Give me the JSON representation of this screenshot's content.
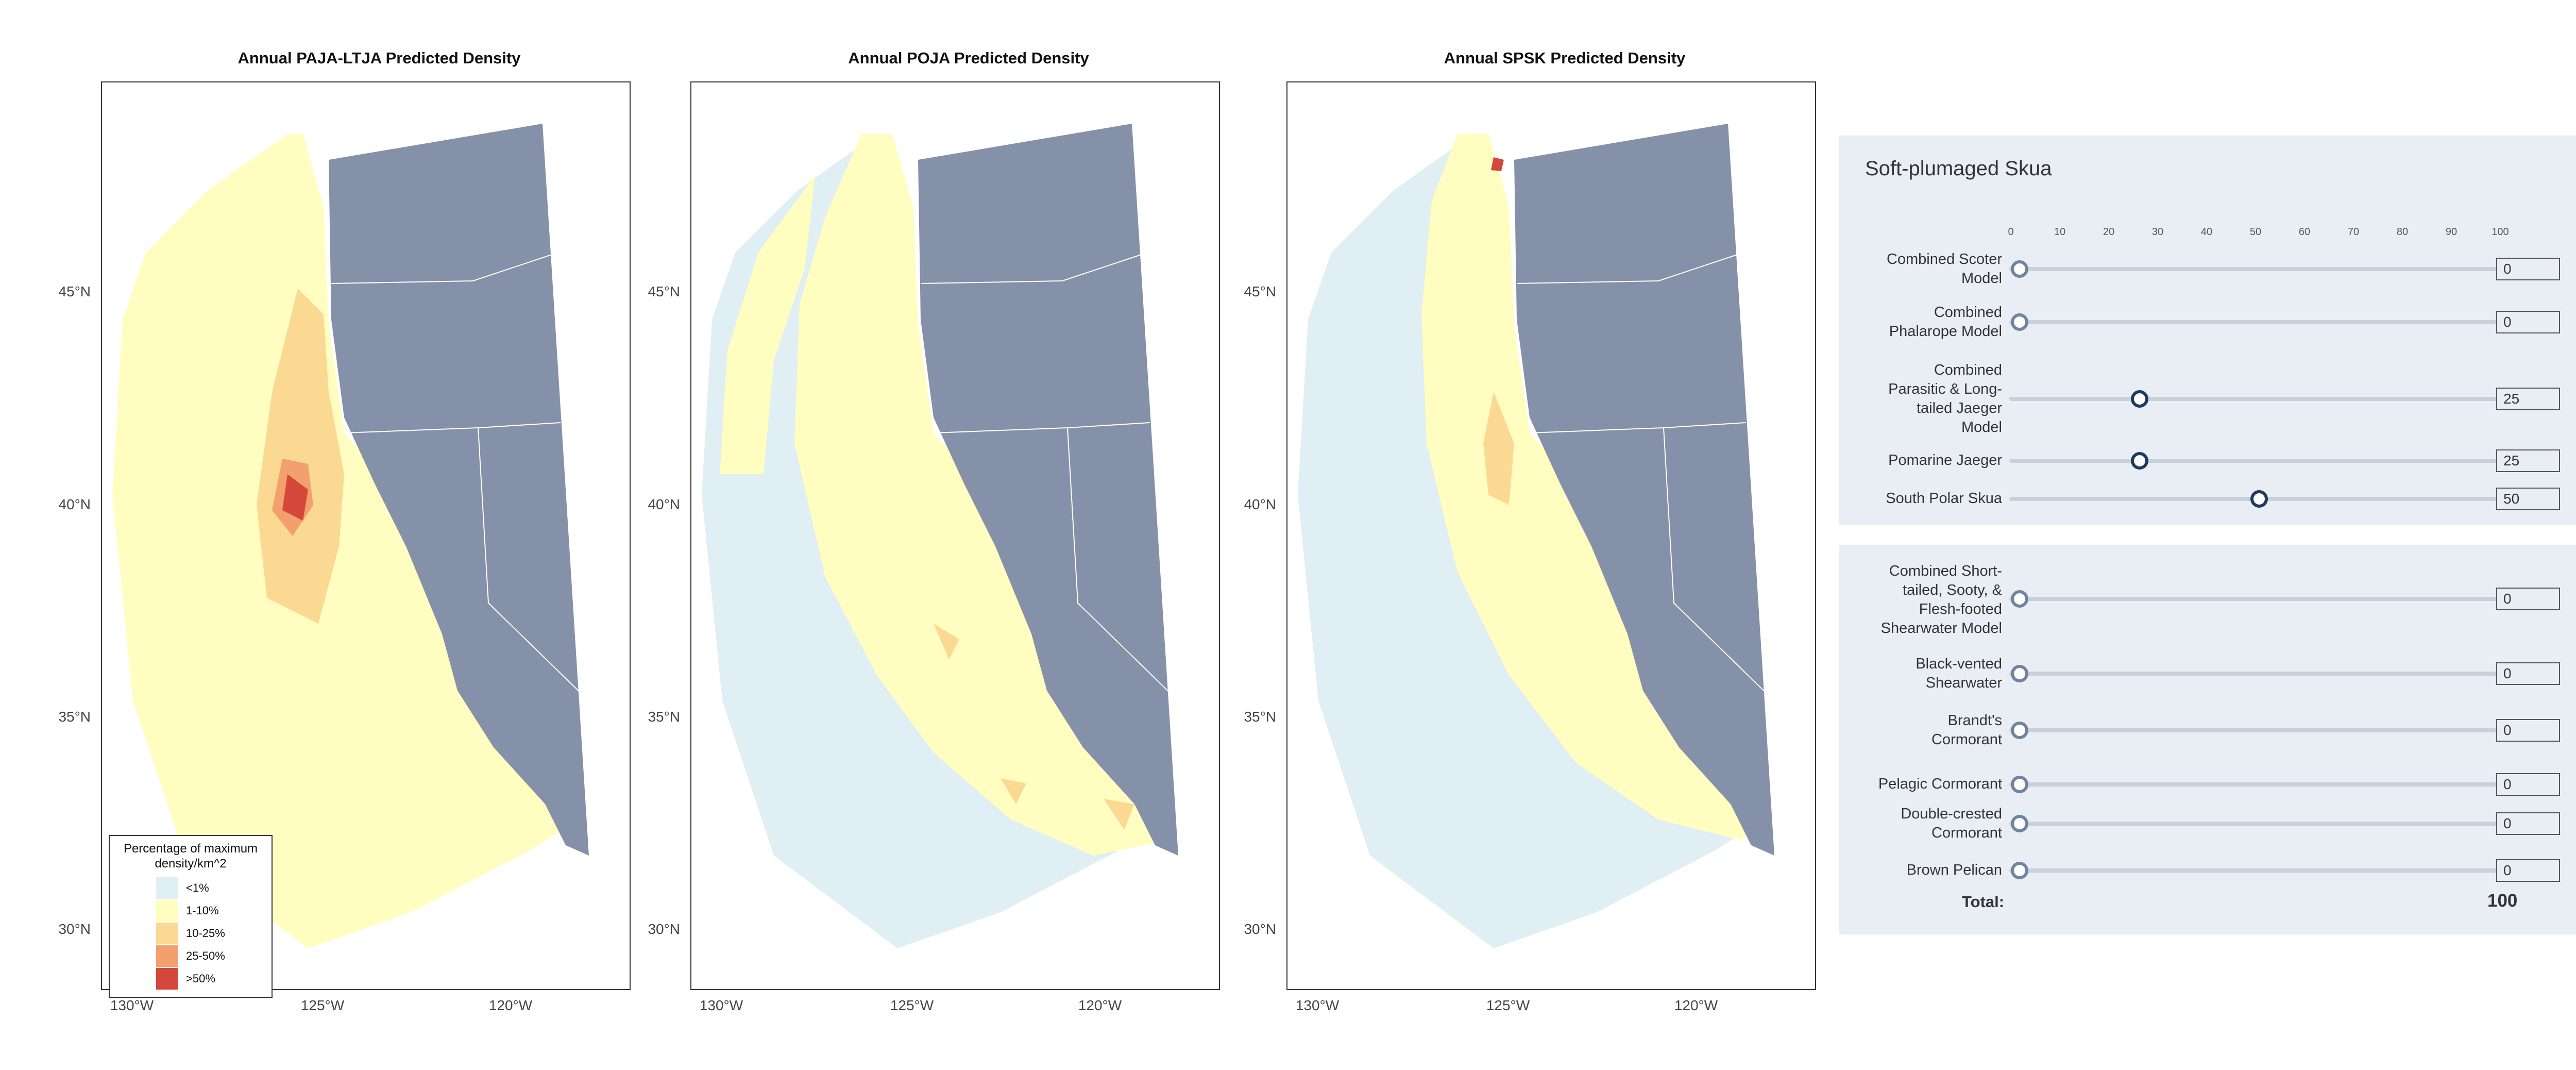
{
  "maps": [
    {
      "title": "Annual PAJA-LTJA Predicted Density",
      "lat_labels": [
        "45°N",
        "40°N",
        "35°N",
        "30°N"
      ],
      "lon_labels": [
        "130°W",
        "125°W",
        "120°W"
      ]
    },
    {
      "title": "Annual POJA Predicted Density",
      "lat_labels": [
        "45°N",
        "40°N",
        "35°N",
        "30°N"
      ],
      "lon_labels": [
        "130°W",
        "125°W",
        "120°W"
      ]
    },
    {
      "title": "Annual SPSK Predicted Density",
      "lat_labels": [
        "45°N",
        "40°N",
        "35°N",
        "30°N"
      ],
      "lon_labels": [
        "130°W",
        "125°W",
        "120°W"
      ]
    }
  ],
  "legend": {
    "title_line1": "Percentage of maximum",
    "title_line2": "density/km^2",
    "items": [
      {
        "label": "<1%",
        "color": "#e0eff3"
      },
      {
        "label": "1-10%",
        "color": "#fffec0"
      },
      {
        "label": "10-25%",
        "color": "#fcd993"
      },
      {
        "label": "25-50%",
        "color": "#f3a06e"
      },
      {
        "label": ">50%",
        "color": "#d6473b"
      }
    ]
  },
  "colors": {
    "land": "#8591a9",
    "water_low": "#e0eff3",
    "low": "#fffec0",
    "mid": "#fcd993",
    "high": "#f3a06e",
    "max": "#d6473b",
    "panel_bg": "#e8eef3"
  },
  "panel1": {
    "heading": "Soft-plumaged Skua",
    "scale_ticks": [
      "0",
      "10",
      "20",
      "30",
      "40",
      "50",
      "60",
      "70",
      "80",
      "90",
      "100"
    ],
    "sliders": [
      {
        "label_lines": [
          "Combined Scoter",
          "Model"
        ],
        "value": 0,
        "value_text": "0"
      },
      {
        "label_lines": [
          "Combined",
          "Phalarope Model"
        ],
        "value": 0,
        "value_text": "0"
      },
      {
        "label_lines": [
          "Combined",
          "Parasitic & Long-",
          "tailed Jaeger",
          "Model"
        ],
        "value": 25,
        "value_text": "25"
      },
      {
        "label_lines": [
          "Pomarine Jaeger"
        ],
        "value": 25,
        "value_text": "25"
      },
      {
        "label_lines": [
          "South Polar Skua"
        ],
        "value": 50,
        "value_text": "50"
      }
    ]
  },
  "panel2": {
    "sliders": [
      {
        "label_lines": [
          "Combined Short-",
          "tailed, Sooty, &",
          "Flesh-footed",
          "Shearwater Model"
        ],
        "value": 0,
        "value_text": "0"
      },
      {
        "label_lines": [
          "Black-vented",
          "Shearwater"
        ],
        "value": 0,
        "value_text": "0"
      },
      {
        "label_lines": [
          "Brandt's",
          "Cormorant"
        ],
        "value": 0,
        "value_text": "0"
      },
      {
        "label_lines": [
          "Pelagic Cormorant"
        ],
        "value": 0,
        "value_text": "0"
      },
      {
        "label_lines": [
          "Double-crested",
          "Cormorant"
        ],
        "value": 0,
        "value_text": "0"
      },
      {
        "label_lines": [
          "Brown Pelican"
        ],
        "value": 0,
        "value_text": "0"
      }
    ],
    "total_label": "Total:",
    "total_value": "100"
  }
}
